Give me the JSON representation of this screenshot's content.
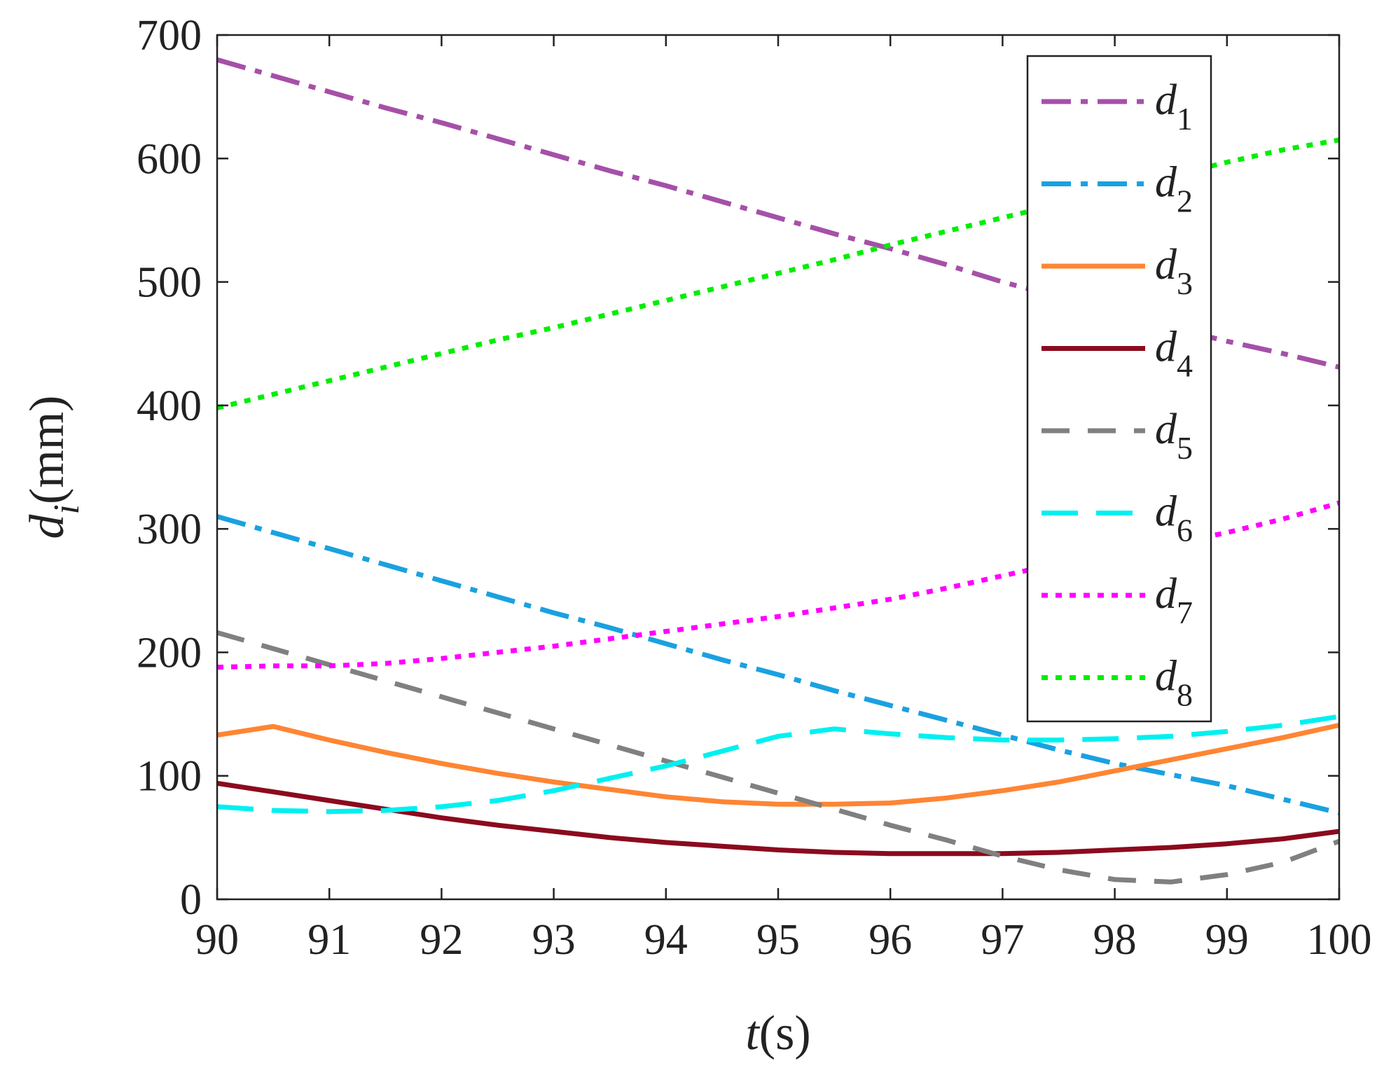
{
  "chart_data": {
    "type": "line",
    "xlabel": {
      "main": "t",
      "unit": "(s)"
    },
    "ylabel": {
      "main": "d",
      "sub": "i",
      "unit": "(mm)"
    },
    "xlim": [
      90,
      100
    ],
    "ylim": [
      0,
      700
    ],
    "xticks": [
      90,
      91,
      92,
      93,
      94,
      95,
      96,
      97,
      98,
      99,
      100
    ],
    "yticks": [
      0,
      100,
      200,
      300,
      400,
      500,
      600,
      700
    ],
    "grid": false,
    "legend_position": "top-right",
    "x": [
      90,
      90.5,
      91,
      91.5,
      92,
      92.5,
      93,
      93.5,
      94,
      94.5,
      95,
      95.5,
      96,
      96.5,
      97,
      97.5,
      98,
      98.5,
      99,
      99.5,
      100
    ],
    "series": [
      {
        "name": "d",
        "sub": "1",
        "color": "#a550a8",
        "dash": "dashdot",
        "values": [
          680,
          667,
          654,
          641,
          629,
          616,
          603,
          590,
          578,
          565,
          552,
          539,
          527,
          514,
          500,
          488,
          474,
          463,
          452,
          442,
          431
        ]
      },
      {
        "name": "d",
        "sub": "2",
        "color": "#1aa1e0",
        "dash": "dashdot",
        "values": [
          310,
          297,
          284,
          271,
          258,
          245,
          232,
          220,
          207,
          194,
          182,
          169,
          157,
          145,
          133,
          121,
          110,
          101,
          92,
          81,
          70
        ]
      },
      {
        "name": "d",
        "sub": "3",
        "color": "#ff8533",
        "dash": "solid",
        "values": [
          133,
          140,
          129,
          119,
          110,
          102,
          95,
          89,
          83,
          79,
          77,
          77,
          78,
          82,
          88,
          95,
          104,
          113,
          122,
          131,
          141
        ]
      },
      {
        "name": "d",
        "sub": "4",
        "color": "#8b0a1e",
        "dash": "solid",
        "values": [
          94,
          87,
          80,
          73,
          66,
          60,
          55,
          50,
          46,
          43,
          40,
          38,
          37,
          37,
          37,
          38,
          40,
          42,
          45,
          49,
          55
        ]
      },
      {
        "name": "d",
        "sub": "5",
        "color": "#808080",
        "dash": "dash",
        "values": [
          216,
          203,
          190,
          177,
          164,
          151,
          138,
          125,
          112,
          99,
          86,
          73,
          60,
          48,
          35,
          24,
          16,
          14,
          20,
          30,
          47
        ]
      },
      {
        "name": "d",
        "sub": "6",
        "color": "#00f0f0",
        "dash": "longdash",
        "values": [
          75,
          72,
          71,
          72,
          75,
          80,
          88,
          98,
          108,
          120,
          132,
          138,
          134,
          131,
          129,
          129,
          130,
          132,
          136,
          141,
          148
        ]
      },
      {
        "name": "d",
        "sub": "7",
        "color": "#ff00ff",
        "dash": "dot",
        "values": [
          188,
          189,
          189,
          191,
          195,
          200,
          205,
          211,
          217,
          223,
          229,
          236,
          243,
          252,
          262,
          272,
          280,
          288,
          297,
          308,
          321
        ]
      },
      {
        "name": "d",
        "sub": "8",
        "color": "#00ee00",
        "dash": "dot",
        "values": [
          398,
          409,
          420,
          431,
          442,
          453,
          463,
          474,
          485,
          496,
          507,
          518,
          530,
          541,
          552,
          563,
          575,
          586,
          597,
          607,
          615
        ]
      }
    ]
  }
}
